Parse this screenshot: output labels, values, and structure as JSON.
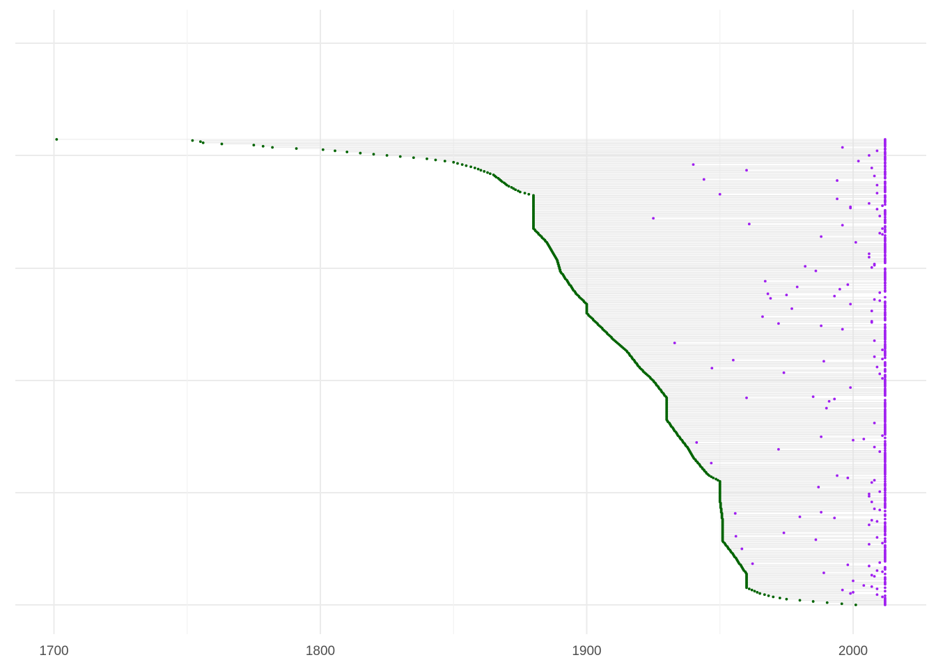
{
  "chart_data": {
    "type": "scatter",
    "title": "",
    "xlabel": "",
    "ylabel": "",
    "xlim": [
      1685,
      2027
    ],
    "x_ticks": [
      1700,
      1800,
      1900,
      2000
    ],
    "x_tick_labels": [
      "1700",
      "1800",
      "1900",
      "2000"
    ],
    "x_minor_ticks": [
      1750,
      1850,
      1950
    ],
    "y_axis_labels_shown": false,
    "grid": true,
    "legend": "none",
    "series": [
      {
        "role": "start",
        "color": "#006400",
        "anchors": [
          [
            1701,
            0
          ],
          [
            1752,
            1
          ],
          [
            1755,
            2
          ],
          [
            1756,
            3
          ],
          [
            1763,
            4
          ],
          [
            1775,
            5
          ],
          [
            1782,
            7
          ],
          [
            1791,
            8
          ],
          [
            1801,
            9
          ],
          [
            1810,
            11
          ],
          [
            1820,
            13
          ],
          [
            1830,
            15
          ],
          [
            1840,
            17
          ],
          [
            1850,
            20
          ],
          [
            1858,
            25
          ],
          [
            1865,
            31
          ],
          [
            1870,
            40
          ],
          [
            1875,
            46
          ],
          [
            1880,
            49
          ],
          [
            1880,
            78
          ],
          [
            1885,
            90
          ],
          [
            1889,
            106
          ],
          [
            1890,
            115
          ],
          [
            1896,
            135
          ],
          [
            1900,
            144
          ],
          [
            1900,
            152
          ],
          [
            1910,
            175
          ],
          [
            1915,
            185
          ],
          [
            1920,
            200
          ],
          [
            1925,
            211
          ],
          [
            1930,
            226
          ],
          [
            1930,
            245
          ],
          [
            1934,
            258
          ],
          [
            1938,
            270
          ],
          [
            1940,
            278
          ],
          [
            1945,
            292
          ],
          [
            1946,
            294
          ],
          [
            1950,
            299
          ],
          [
            1950,
            315
          ],
          [
            1951,
            334
          ],
          [
            1951,
            351
          ],
          [
            1955,
            363
          ],
          [
            1960,
            380
          ],
          [
            1960,
            392
          ],
          [
            1965,
            397
          ],
          [
            1970,
            400
          ],
          [
            1975,
            402
          ],
          [
            1985,
            404
          ],
          [
            2001,
            407
          ]
        ]
      },
      {
        "role": "end",
        "color": "#a020f0",
        "values": "see points array drawn per row"
      }
    ],
    "rows": 408
  }
}
